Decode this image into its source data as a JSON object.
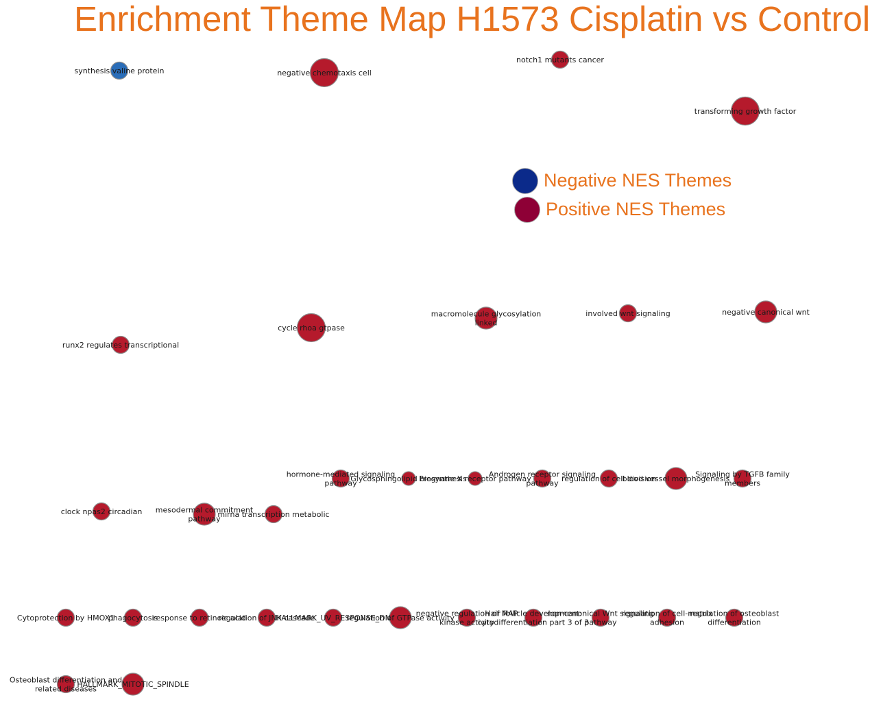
{
  "title": "Enrichment Theme Map H1573 Cisplatin vs Control",
  "colors": {
    "title": "#E8731E",
    "negative_node": "#2A6DB8",
    "positive_node": "#B51A2C",
    "node_border": "#8a8a8a",
    "legend_negative": "#0B2A8A",
    "legend_positive": "#8E0036"
  },
  "legend": {
    "negative_label": "Negative NES Themes",
    "positive_label": "Positive NES Themes"
  },
  "nodes": [
    {
      "label": [
        "synthesis valine protein"
      ],
      "nes": "negative",
      "size": "small"
    },
    {
      "label": [
        "negative chemotaxis cell"
      ],
      "nes": "positive",
      "size": "large"
    },
    {
      "label": [
        "notch1 mutants cancer"
      ],
      "nes": "positive",
      "size": "small"
    },
    {
      "label": [
        "transforming growth factor"
      ],
      "nes": "positive",
      "size": "large"
    },
    {
      "label": [
        "cycle rhoa gtpase"
      ],
      "nes": "positive",
      "size": "large"
    },
    {
      "label": [
        "macromolecule glycosylation",
        "linked"
      ],
      "nes": "positive",
      "size": "medium"
    },
    {
      "label": [
        "involved wnt signaling"
      ],
      "nes": "positive",
      "size": "small"
    },
    {
      "label": [
        "negative canonical wnt"
      ],
      "nes": "positive",
      "size": "medium"
    },
    {
      "label": [
        "runx2 regulates transcriptional"
      ],
      "nes": "positive",
      "size": "small"
    },
    {
      "label": [
        "hormone-mediated signaling",
        "pathway"
      ],
      "nes": "positive",
      "size": "small"
    },
    {
      "label": [
        "Glycosphingolipid biosynthesis"
      ],
      "nes": "positive",
      "size": "tiny"
    },
    {
      "label": [
        "Pregnane X receptor pathway"
      ],
      "nes": "positive",
      "size": "tiny"
    },
    {
      "label": [
        "Androgen receptor signaling",
        "pathway"
      ],
      "nes": "positive",
      "size": "small"
    },
    {
      "label": [
        "regulation of cell division"
      ],
      "nes": "positive",
      "size": "small"
    },
    {
      "label": [
        "blood vessel morphogenesis"
      ],
      "nes": "positive",
      "size": "medium"
    },
    {
      "label": [
        "Signaling by TGFB family",
        "members"
      ],
      "nes": "positive",
      "size": "small"
    },
    {
      "label": [
        "clock npas2 circadian"
      ],
      "nes": "positive",
      "size": "small"
    },
    {
      "label": [
        "mesodermal commitment",
        "pathway"
      ],
      "nes": "positive",
      "size": "medium"
    },
    {
      "label": [
        "mirna transcription metabolic"
      ],
      "nes": "positive",
      "size": "small"
    },
    {
      "label": [
        "Cytoprotection by HMOX1"
      ],
      "nes": "positive",
      "size": "small"
    },
    {
      "label": [
        "phagocytosis"
      ],
      "nes": "positive",
      "size": "small"
    },
    {
      "label": [
        "response to retinoic acid"
      ],
      "nes": "positive",
      "size": "small"
    },
    {
      "label": [
        "regulation of JNK cascade"
      ],
      "nes": "positive",
      "size": "small"
    },
    {
      "label": [
        "HALLMARK_UV_RESPONSE_DN"
      ],
      "nes": "positive",
      "size": "small"
    },
    {
      "label": [
        "regulation of GTPase activity"
      ],
      "nes": "positive",
      "size": "medium"
    },
    {
      "label": [
        "negative regulation of MAP",
        "kinase activity"
      ],
      "nes": "positive",
      "size": "small"
    },
    {
      "label": [
        "Hair follicle development:",
        "cytodifferentiation part 3 of 3"
      ],
      "nes": "positive",
      "size": "small"
    },
    {
      "label": [
        "non-canonical Wnt signaling",
        "pathway"
      ],
      "nes": "positive",
      "size": "small"
    },
    {
      "label": [
        "regulation of cell-matrix",
        "adhesion"
      ],
      "nes": "positive",
      "size": "small"
    },
    {
      "label": [
        "regulation of osteoblast",
        "differentiation"
      ],
      "nes": "positive",
      "size": "small"
    },
    {
      "label": [
        "Osteoblast differentiation and",
        "related diseases"
      ],
      "nes": "positive",
      "size": "small"
    },
    {
      "label": [
        "HALLMARK_MITOTIC_SPINDLE"
      ],
      "nes": "positive",
      "size": "medium"
    }
  ]
}
